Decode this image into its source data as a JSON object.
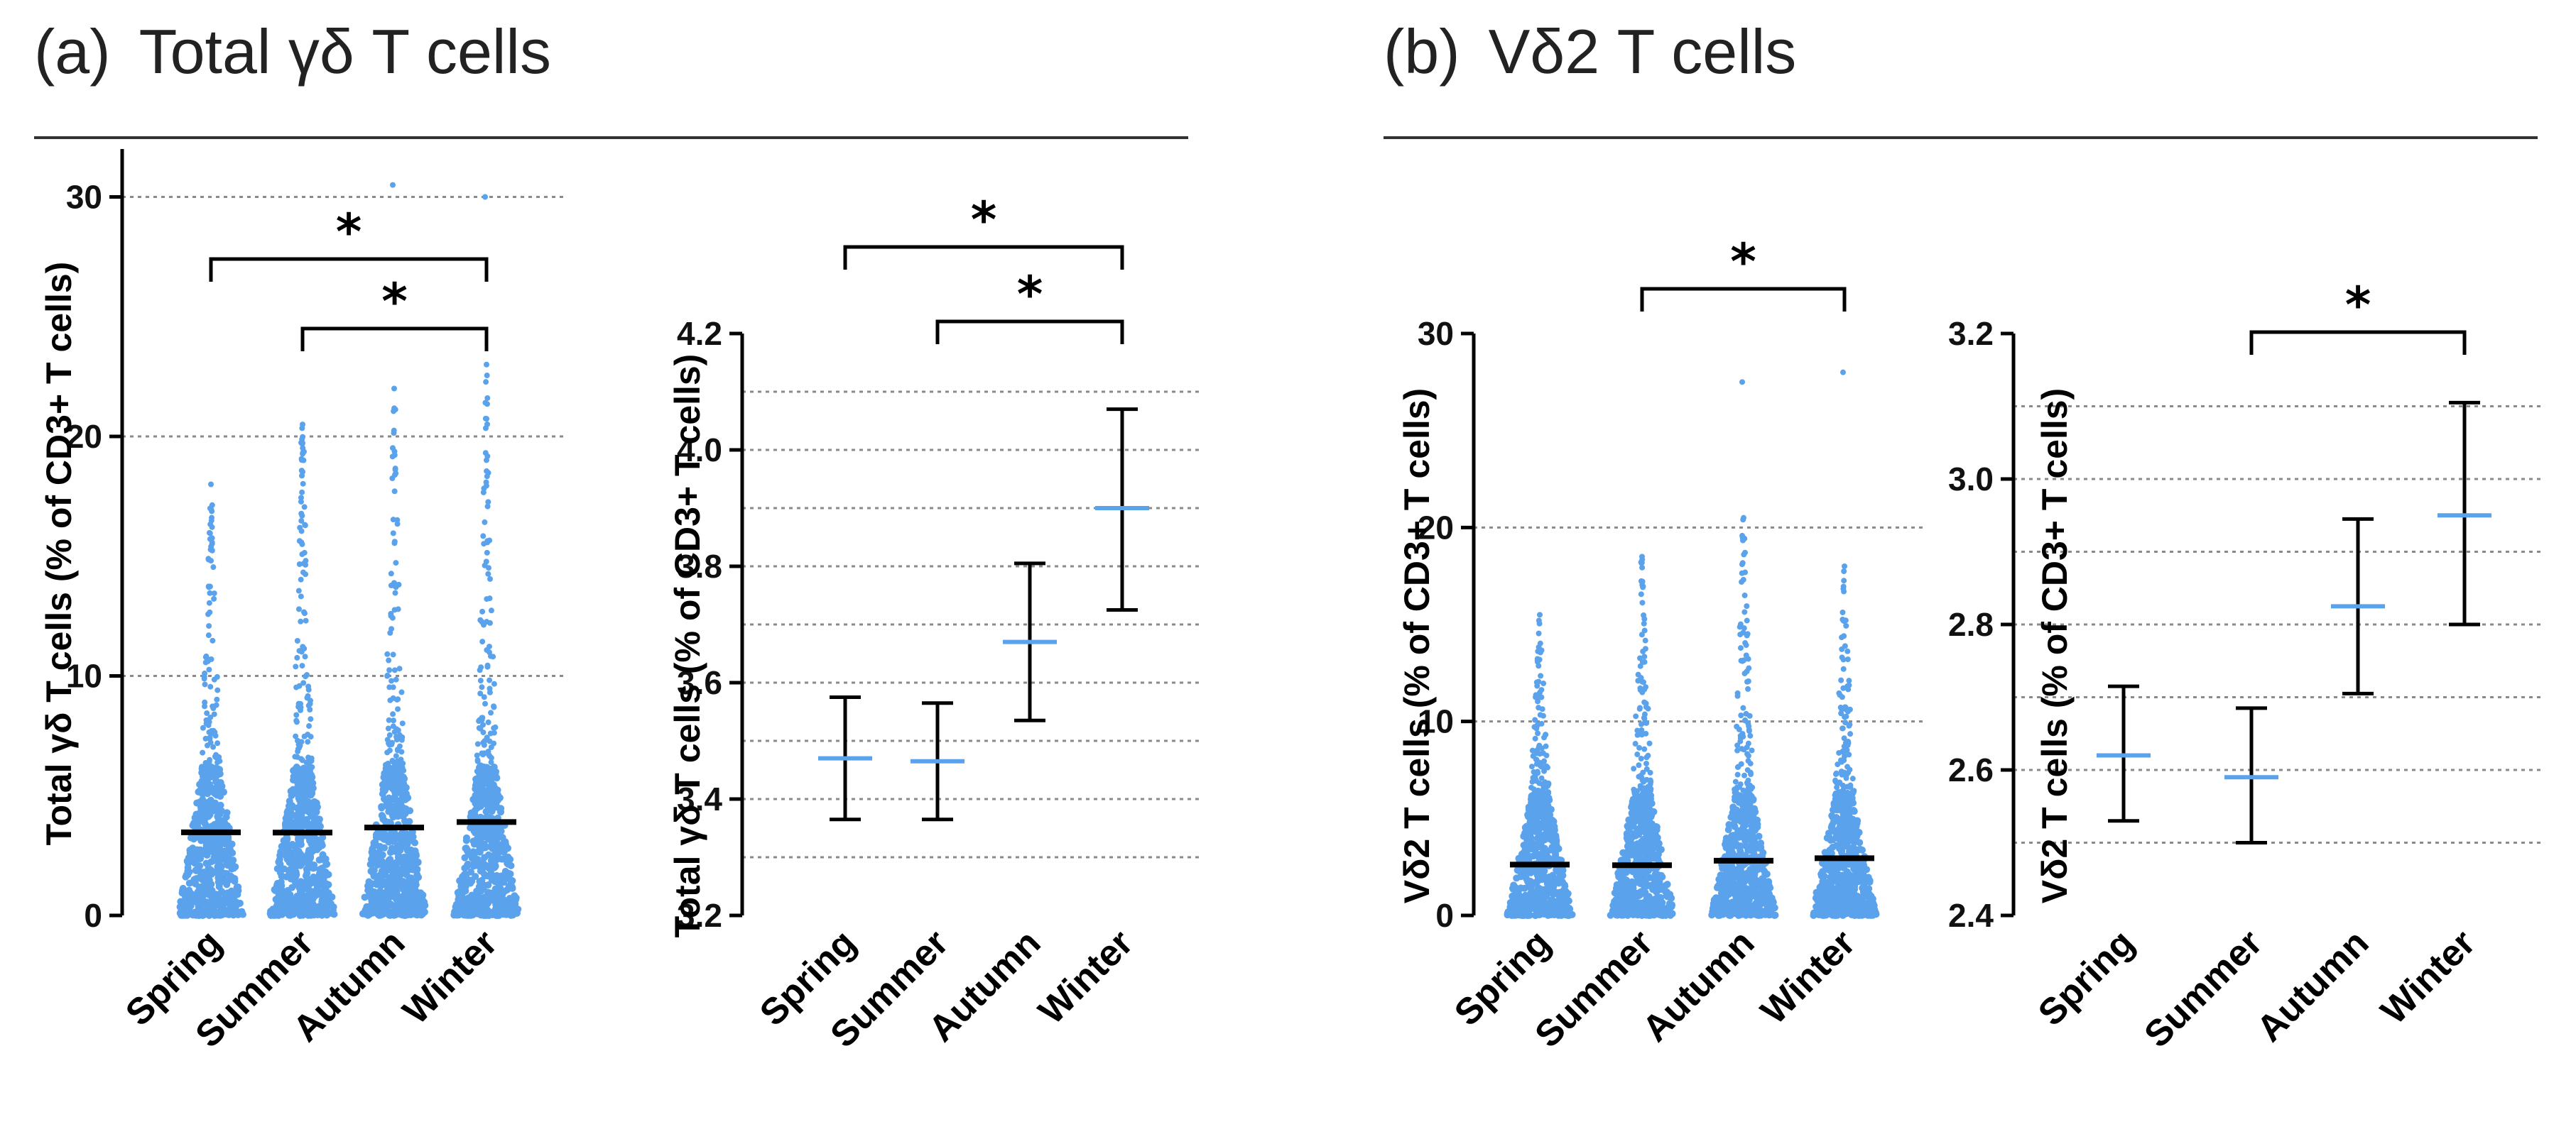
{
  "panels": [
    {
      "letter": "(a)",
      "title": "Total γδ T cells"
    },
    {
      "letter": "(b)",
      "title": "Vδ2 T cells"
    }
  ],
  "colors": {
    "points": "#5aa2ec",
    "mean_line": "#5aa2ec",
    "axis": "#000000",
    "grid": "#8a8a8a"
  },
  "chart_data": [
    {
      "type": "scatter",
      "panel": "(a)",
      "categories": [
        "Spring",
        "Summer",
        "Autumn",
        "Winter"
      ],
      "ylabel": "Total γδ T cells (% of CD3+ T cells)",
      "ylim": [
        0,
        32
      ],
      "yticks": [
        0,
        10,
        20,
        30
      ],
      "grid_y": [
        10,
        20,
        30
      ],
      "means": [
        3.47,
        3.46,
        3.67,
        3.9
      ],
      "max_values": [
        18.0,
        20.5,
        22.0,
        23.0
      ],
      "outliers": [
        [],
        [],
        [
          30.5
        ],
        [
          30.0
        ]
      ],
      "significance": [
        {
          "from": "Spring",
          "to": "Winter",
          "label": "*"
        },
        {
          "from": "Summer",
          "to": "Winter",
          "label": "*"
        }
      ]
    },
    {
      "type": "errorbar",
      "panel": "(a)",
      "categories": [
        "Spring",
        "Summer",
        "Autumn",
        "Winter"
      ],
      "ylabel": "Total γδ T cells (% of CD3+ T cells)",
      "ylim": [
        3.2,
        4.2
      ],
      "yticks": [
        3.2,
        3.4,
        3.6,
        3.8,
        4.0,
        4.2
      ],
      "yticklabels": [
        "3.2",
        "3.4",
        "3.6",
        "3.8",
        "4.0",
        "4.2"
      ],
      "grid_y": [
        3.3,
        3.4,
        3.5,
        3.6,
        3.7,
        3.8,
        3.9,
        4.0,
        4.1
      ],
      "means": [
        3.47,
        3.465,
        3.67,
        3.9
      ],
      "lower": [
        3.365,
        3.365,
        3.535,
        3.725
      ],
      "upper": [
        3.575,
        3.565,
        3.805,
        4.07
      ],
      "significance": [
        {
          "from": "Spring",
          "to": "Winter",
          "label": "*"
        },
        {
          "from": "Summer",
          "to": "Winter",
          "label": "*"
        }
      ]
    },
    {
      "type": "scatter",
      "panel": "(b)",
      "categories": [
        "Spring",
        "Summer",
        "Autumn",
        "Winter"
      ],
      "ylabel": "Vδ2 T cells (% of CD3+ T cells)",
      "ylim": [
        0,
        30
      ],
      "yticks": [
        0,
        10,
        20,
        30
      ],
      "grid_y": [
        10,
        20
      ],
      "means": [
        2.62,
        2.59,
        2.82,
        2.95
      ],
      "max_values": [
        15.5,
        18.5,
        20.5,
        18.0
      ],
      "outliers": [
        [],
        [],
        [
          27.5
        ],
        [
          28.0
        ]
      ],
      "significance": [
        {
          "from": "Summer",
          "to": "Winter",
          "label": "*"
        }
      ]
    },
    {
      "type": "errorbar",
      "panel": "(b)",
      "categories": [
        "Spring",
        "Summer",
        "Autumn",
        "Winter"
      ],
      "ylabel": "Vδ2 T cells (% of CD3+ T cells)",
      "ylim": [
        2.4,
        3.2
      ],
      "yticks": [
        2.4,
        2.6,
        2.8,
        3.0,
        3.2
      ],
      "yticklabels": [
        "2.4",
        "2.6",
        "2.8",
        "3.0",
        "3.2"
      ],
      "grid_y": [
        2.5,
        2.6,
        2.7,
        2.8,
        2.9,
        3.0,
        3.1
      ],
      "means": [
        2.62,
        2.59,
        2.825,
        2.95
      ],
      "lower": [
        2.53,
        2.5,
        2.705,
        2.8
      ],
      "upper": [
        2.715,
        2.685,
        2.945,
        3.105
      ],
      "significance": [
        {
          "from": "Summer",
          "to": "Winter",
          "label": "*"
        }
      ]
    }
  ]
}
